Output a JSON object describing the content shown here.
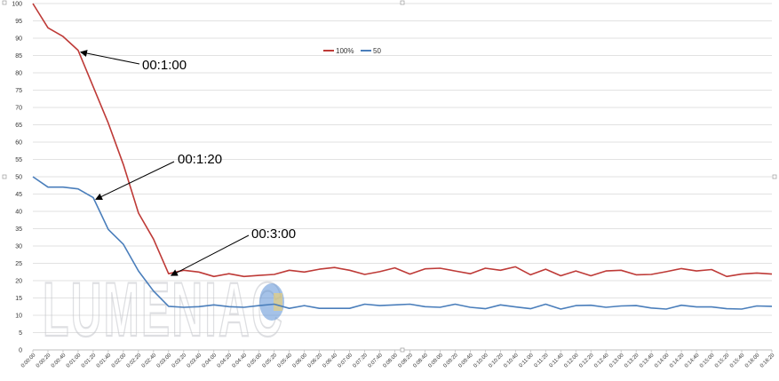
{
  "chart_data": {
    "type": "line",
    "title": "",
    "xlabel": "",
    "ylabel": "",
    "ylim": [
      0,
      100
    ],
    "yticks": [
      0,
      5,
      10,
      15,
      20,
      25,
      30,
      35,
      40,
      45,
      50,
      55,
      60,
      65,
      70,
      75,
      80,
      85,
      90,
      95,
      100
    ],
    "x": [
      "0:00:00",
      "0:00:20",
      "0:00:40",
      "0:01:00",
      "0:01:20",
      "0:01:40",
      "0:02:00",
      "0:02:20",
      "0:02:40",
      "0:03:00",
      "0:03:20",
      "0:03:40",
      "0:04:00",
      "0:04:20",
      "0:04:40",
      "0:05:00",
      "0:05:20",
      "0:05:40",
      "0:06:00",
      "0:06:20",
      "0:06:40",
      "0:07:00",
      "0:07:20",
      "0:07:40",
      "0:08:00",
      "0:08:20",
      "0:08:40",
      "0:09:00",
      "0:09:20",
      "0:09:40",
      "0:10:00",
      "0:10:20",
      "0:10:40",
      "0:11:00",
      "0:11:20",
      "0:11:40",
      "0:12:00",
      "0:12:20",
      "0:12:40",
      "0:13:00",
      "0:13:20",
      "0:13:40",
      "0:14:00",
      "0:14:20",
      "0:14:40",
      "0:15:00",
      "0:15:20",
      "0:15:40",
      "0:16:00",
      "0:16:20"
    ],
    "series": [
      {
        "name": "100%",
        "color": "#be3a37",
        "values": [
          100,
          93,
          90.5,
          86.5,
          76,
          65.5,
          53.5,
          39.5,
          32,
          22,
          23,
          22.5,
          21.2,
          22,
          21.2,
          21.5,
          21.8,
          23,
          22.5,
          23.3,
          23.8,
          23,
          21.8,
          22.6,
          23.7,
          21.9,
          23.4,
          23.6,
          22.8,
          22,
          23.6,
          23,
          24,
          21.7,
          23.3,
          21.4,
          22.8,
          21.4,
          22.8,
          23,
          21.7,
          21.8,
          22.6,
          23.5,
          22.8,
          23.2,
          21.2,
          21.9,
          22.2,
          21.9
        ]
      },
      {
        "name": "50",
        "color": "#4a7ebb",
        "values": [
          50,
          47,
          47,
          46.5,
          44,
          34.8,
          30.5,
          22.8,
          17,
          12.6,
          12.3,
          12.5,
          13,
          12.5,
          12.3,
          12.8,
          13.2,
          12,
          12.8,
          12,
          12,
          12,
          13.2,
          12.8,
          13,
          13.2,
          12.5,
          12.3,
          13.2,
          12.3,
          11.9,
          13,
          12.4,
          11.9,
          13.2,
          11.8,
          12.8,
          12.9,
          12.3,
          12.7,
          12.8,
          12.1,
          11.8,
          12.9,
          12.4,
          12.4,
          11.9,
          11.8,
          12.7,
          12.6
        ]
      }
    ],
    "grid": true,
    "legend": "top-center",
    "annotations": [
      {
        "text": "00:1:00",
        "target_x": "0:01:00",
        "series": "100%"
      },
      {
        "text": "00:1:20",
        "target_x": "0:01:20",
        "series": "50"
      },
      {
        "text": "00:3:00",
        "target_x": "0:03:00",
        "series": "100%"
      }
    ]
  },
  "watermark": {
    "text": "LUMENIAC",
    "accent_colors": [
      "#5b8fd6",
      "#f2d16b"
    ]
  }
}
